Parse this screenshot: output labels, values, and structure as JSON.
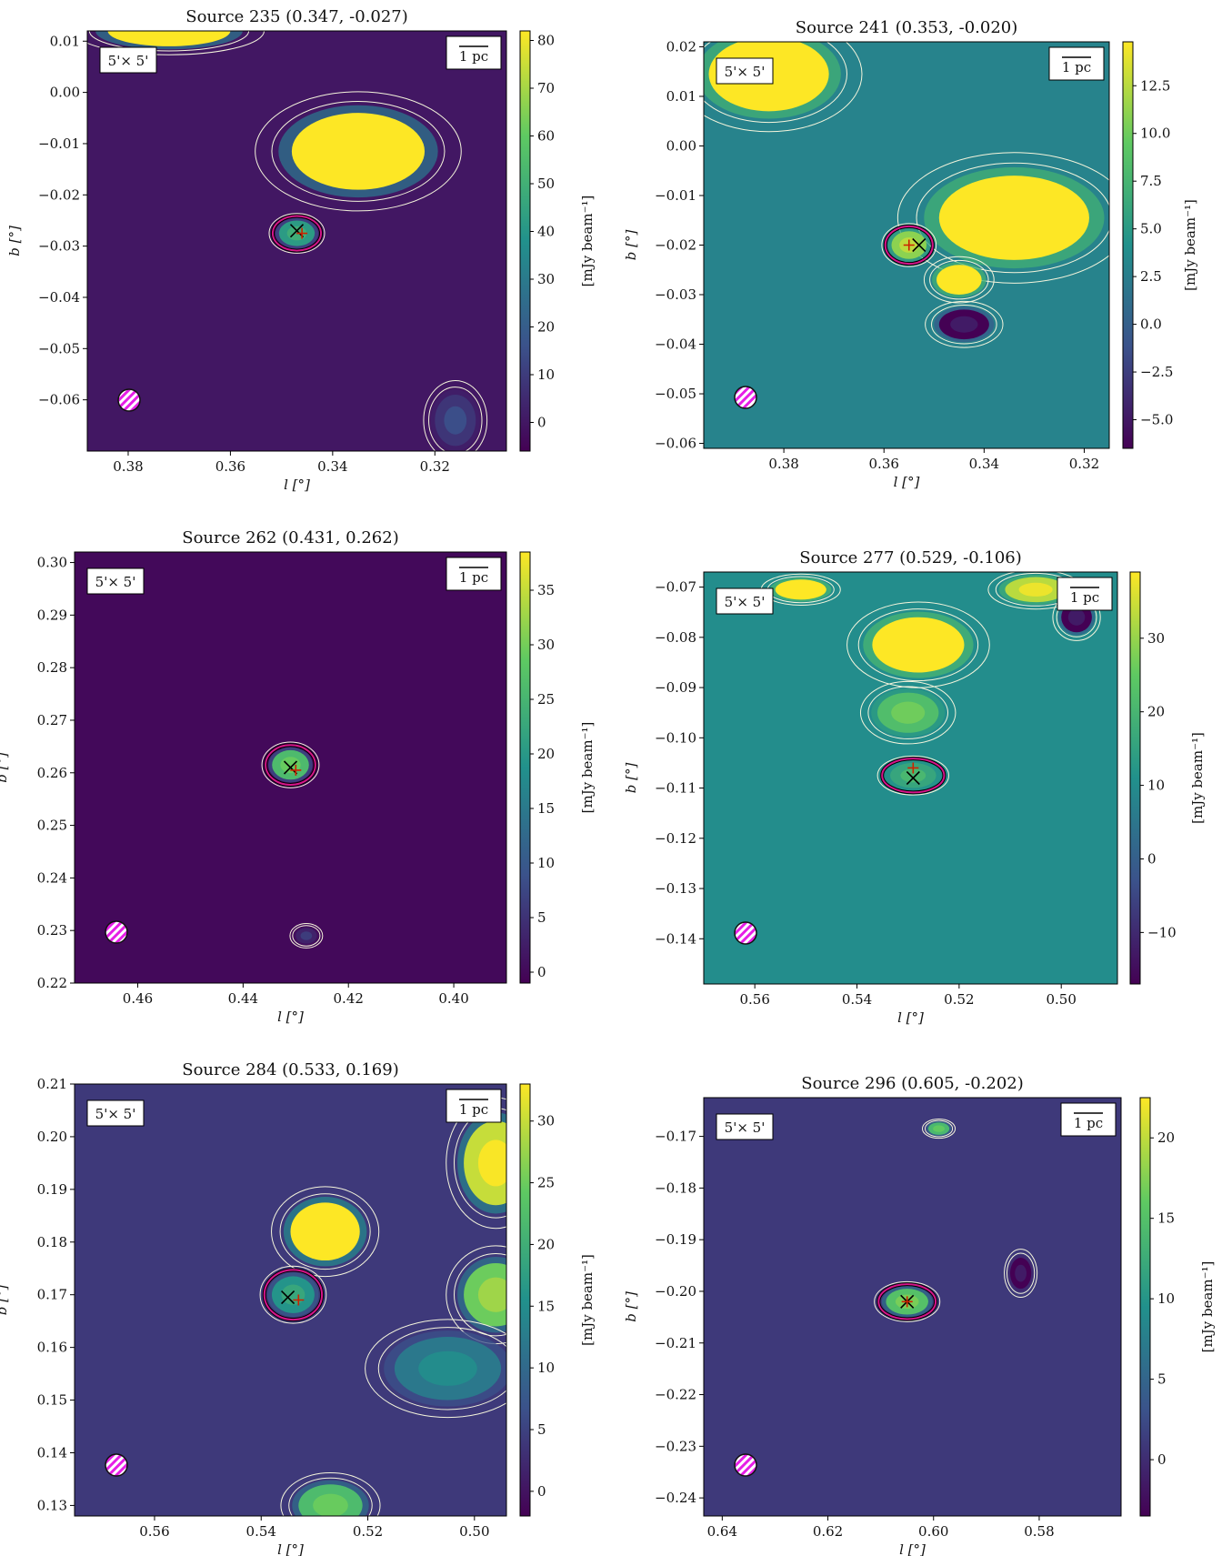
{
  "scale_text": "1 pc",
  "size_text": "5'× 5'",
  "cbar_label": "[mJy beam⁻¹]",
  "xlabel_var": "l",
  "ylabel_var": "b",
  "unit_deg": "[°]",
  "colors": {
    "colormap": [
      "#440154",
      "#3b528b",
      "#21918c",
      "#5ec962",
      "#fde725"
    ],
    "contour": "#f5f5dc",
    "source_contour": "#d4148a",
    "beam": "#e61ee6",
    "marker_x": "#000000",
    "marker_plus": "#cc2200"
  },
  "chart_data": [
    {
      "type": "heatmap",
      "title": "Source 235 (0.347, -0.027)",
      "xlim": [
        0.388,
        0.306
      ],
      "ylim": [
        -0.07,
        0.012
      ],
      "xticks": [
        "0.38",
        "0.36",
        "0.34",
        "0.32"
      ],
      "xtick_vals": [
        0.38,
        0.36,
        0.34,
        0.32
      ],
      "yticks": [
        "0.01",
        "0.00",
        "−0.01",
        "−0.02",
        "−0.03",
        "−0.04",
        "−0.05",
        "−0.06"
      ],
      "ytick_vals": [
        0.01,
        0.0,
        -0.01,
        -0.02,
        -0.03,
        -0.04,
        -0.05,
        -0.06
      ],
      "cbar_range": [
        -6,
        82
      ],
      "cbar_ticks": [
        "80",
        "70",
        "60",
        "50",
        "40",
        "30",
        "20",
        "10",
        "0"
      ],
      "cbar_tick_vals": [
        80,
        70,
        60,
        50,
        40,
        30,
        20,
        10,
        0
      ],
      "source": [
        0.347,
        -0.027
      ],
      "peak": [
        0.346,
        -0.0275
      ],
      "background": 0,
      "blobs": [
        {
          "l": 0.335,
          "b": -0.0115,
          "rl": 0.013,
          "rb": 0.0075,
          "v": 82,
          "sat": true
        },
        {
          "l": 0.347,
          "b": -0.0275,
          "rl": 0.0035,
          "rb": 0.0025,
          "v": 42,
          "sat": false
        },
        {
          "l": 0.372,
          "b": 0.012,
          "rl": 0.012,
          "rb": 0.003,
          "v": 82,
          "sat": true
        },
        {
          "l": 0.316,
          "b": -0.064,
          "rl": 0.004,
          "rb": 0.005,
          "v": 8,
          "sat": false
        }
      ]
    },
    {
      "type": "heatmap",
      "title": "Source 241 (0.353, -0.020)",
      "xlim": [
        0.396,
        0.315
      ],
      "ylim": [
        -0.061,
        0.021
      ],
      "xticks": [
        "0.38",
        "0.36",
        "0.34",
        "0.32"
      ],
      "xtick_vals": [
        0.38,
        0.36,
        0.34,
        0.32
      ],
      "yticks": [
        "0.02",
        "0.01",
        "0.00",
        "−0.01",
        "−0.02",
        "−0.03",
        "−0.04",
        "−0.05",
        "−0.06"
      ],
      "ytick_vals": [
        0.02,
        0.01,
        0.0,
        -0.01,
        -0.02,
        -0.03,
        -0.04,
        -0.05,
        -0.06
      ],
      "cbar_range": [
        -6.5,
        14.8
      ],
      "cbar_ticks": [
        "12.5",
        "10.0",
        "7.5",
        "5.0",
        "2.5",
        "0.0",
        "−2.5",
        "−5.0"
      ],
      "cbar_tick_vals": [
        12.5,
        10.0,
        7.5,
        5.0,
        2.5,
        0.0,
        -2.5,
        -5.0
      ],
      "source": [
        0.353,
        -0.02
      ],
      "peak": [
        0.355,
        -0.02
      ],
      "background": 3,
      "blobs": [
        {
          "l": 0.334,
          "b": -0.0145,
          "rl": 0.015,
          "rb": 0.0085,
          "v": 14.8,
          "sat": true
        },
        {
          "l": 0.383,
          "b": 0.0145,
          "rl": 0.012,
          "rb": 0.0075,
          "v": 14.8,
          "sat": true
        },
        {
          "l": 0.355,
          "b": -0.02,
          "rl": 0.0035,
          "rb": 0.0028,
          "v": 11,
          "sat": false
        },
        {
          "l": 0.345,
          "b": -0.027,
          "rl": 0.0045,
          "rb": 0.003,
          "v": 14.8,
          "sat": true
        },
        {
          "l": 0.344,
          "b": -0.036,
          "rl": 0.005,
          "rb": 0.003,
          "v": -6.5,
          "sat": false
        }
      ]
    },
    {
      "type": "heatmap",
      "title": "Source 262 (0.431, 0.262)",
      "xlim": [
        0.472,
        0.39
      ],
      "ylim": [
        0.22,
        0.302
      ],
      "xticks": [
        "0.46",
        "0.44",
        "0.42",
        "0.40"
      ],
      "xtick_vals": [
        0.46,
        0.44,
        0.42,
        0.4
      ],
      "yticks": [
        "0.30",
        "0.29",
        "0.28",
        "0.27",
        "0.26",
        "0.25",
        "0.24",
        "0.23",
        "0.22"
      ],
      "ytick_vals": [
        0.3,
        0.29,
        0.28,
        0.27,
        0.26,
        0.25,
        0.24,
        0.23,
        0.22
      ],
      "cbar_range": [
        -1,
        38.5
      ],
      "cbar_ticks": [
        "35",
        "30",
        "25",
        "20",
        "15",
        "10",
        "5",
        "0"
      ],
      "cbar_tick_vals": [
        35,
        30,
        25,
        20,
        15,
        10,
        5,
        0
      ],
      "source": [
        0.431,
        0.261
      ],
      "peak": [
        0.43,
        0.2605
      ],
      "background": 0,
      "blobs": [
        {
          "l": 0.431,
          "b": 0.2615,
          "rl": 0.0035,
          "rb": 0.0028,
          "v": 26,
          "sat": false
        },
        {
          "l": 0.428,
          "b": 0.229,
          "rl": 0.002,
          "rb": 0.0015,
          "v": 3,
          "sat": false
        }
      ]
    },
    {
      "type": "heatmap",
      "title": "Source 277 (0.529, -0.106)",
      "xlim": [
        0.57,
        0.489
      ],
      "ylim": [
        -0.149,
        -0.067
      ],
      "xticks": [
        "0.56",
        "0.54",
        "0.52",
        "0.50"
      ],
      "xtick_vals": [
        0.56,
        0.54,
        0.52,
        0.5
      ],
      "yticks": [
        "−0.07",
        "−0.08",
        "−0.09",
        "−0.10",
        "−0.11",
        "−0.12",
        "−0.13",
        "−0.14"
      ],
      "ytick_vals": [
        -0.07,
        -0.08,
        -0.09,
        -0.1,
        -0.11,
        -0.12,
        -0.13,
        -0.14
      ],
      "cbar_range": [
        -17,
        39
      ],
      "cbar_ticks": [
        "30",
        "20",
        "10",
        "0",
        "−10"
      ],
      "cbar_tick_vals": [
        30,
        20,
        10,
        0,
        -10
      ],
      "source": [
        0.529,
        -0.108
      ],
      "peak": [
        0.529,
        -0.106
      ],
      "background": 10,
      "blobs": [
        {
          "l": 0.528,
          "b": -0.0815,
          "rl": 0.009,
          "rb": 0.0055,
          "v": 39,
          "sat": true
        },
        {
          "l": 0.529,
          "b": -0.1075,
          "rl": 0.0045,
          "rb": 0.0025,
          "v": 16,
          "sat": false
        },
        {
          "l": 0.551,
          "b": -0.0705,
          "rl": 0.005,
          "rb": 0.002,
          "v": 39,
          "sat": true
        },
        {
          "l": 0.505,
          "b": -0.0705,
          "rl": 0.006,
          "rb": 0.0025,
          "v": 33,
          "sat": false
        },
        {
          "l": 0.53,
          "b": -0.095,
          "rl": 0.006,
          "rb": 0.004,
          "v": 22,
          "sat": false
        },
        {
          "l": 0.497,
          "b": -0.076,
          "rl": 0.003,
          "rb": 0.003,
          "v": -17,
          "sat": false
        }
      ]
    },
    {
      "type": "heatmap",
      "title": "Source 284 (0.533, 0.169)",
      "xlim": [
        0.575,
        0.494
      ],
      "ylim": [
        0.128,
        0.21
      ],
      "xticks": [
        "0.56",
        "0.54",
        "0.52",
        "0.50"
      ],
      "xtick_vals": [
        0.56,
        0.54,
        0.52,
        0.5
      ],
      "yticks": [
        "0.21",
        "0.20",
        "0.19",
        "0.18",
        "0.17",
        "0.16",
        "0.15",
        "0.14",
        "0.13"
      ],
      "ytick_vals": [
        0.21,
        0.2,
        0.19,
        0.18,
        0.17,
        0.16,
        0.15,
        0.14,
        0.13
      ],
      "cbar_range": [
        -2,
        33
      ],
      "cbar_ticks": [
        "30",
        "25",
        "20",
        "15",
        "10",
        "5",
        "0"
      ],
      "cbar_tick_vals": [
        30,
        25,
        20,
        15,
        10,
        5,
        0
      ],
      "source": [
        0.535,
        0.1695
      ],
      "peak": [
        0.533,
        0.169
      ],
      "background": 4,
      "blobs": [
        {
          "l": 0.528,
          "b": 0.182,
          "rl": 0.0065,
          "rb": 0.0055,
          "v": 33,
          "sat": true
        },
        {
          "l": 0.534,
          "b": 0.17,
          "rl": 0.004,
          "rb": 0.0035,
          "v": 16,
          "sat": false
        },
        {
          "l": 0.496,
          "b": 0.195,
          "rl": 0.006,
          "rb": 0.008,
          "v": 30,
          "sat": false
        },
        {
          "l": 0.496,
          "b": 0.17,
          "rl": 0.006,
          "rb": 0.006,
          "v": 25,
          "sat": false
        },
        {
          "l": 0.505,
          "b": 0.156,
          "rl": 0.01,
          "rb": 0.006,
          "v": 12,
          "sat": false
        },
        {
          "l": 0.527,
          "b": 0.13,
          "rl": 0.006,
          "rb": 0.004,
          "v": 22,
          "sat": false
        }
      ]
    },
    {
      "type": "heatmap",
      "title": "Source 296 (0.605, -0.202)",
      "xlim": [
        0.6435,
        0.5645
      ],
      "ylim": [
        -0.2435,
        -0.1625
      ],
      "xticks": [
        "0.64",
        "0.62",
        "0.60",
        "0.58"
      ],
      "xtick_vals": [
        0.64,
        0.62,
        0.6,
        0.58
      ],
      "yticks": [
        "−0.17",
        "−0.18",
        "−0.19",
        "−0.20",
        "−0.21",
        "−0.22",
        "−0.23",
        "−0.24"
      ],
      "ytick_vals": [
        -0.17,
        -0.18,
        -0.19,
        -0.2,
        -0.21,
        -0.22,
        -0.23,
        -0.24
      ],
      "cbar_range": [
        -3.5,
        22.5
      ],
      "cbar_ticks": [
        "20",
        "15",
        "10",
        "5",
        "0"
      ],
      "cbar_tick_vals": [
        20,
        15,
        10,
        5,
        0
      ],
      "source": [
        0.605,
        -0.202
      ],
      "peak": [
        0.605,
        -0.202
      ],
      "background": 1,
      "blobs": [
        {
          "l": 0.605,
          "b": -0.202,
          "rl": 0.004,
          "rb": 0.0025,
          "v": 15,
          "sat": false
        },
        {
          "l": 0.5835,
          "b": -0.1965,
          "rl": 0.002,
          "rb": 0.003,
          "v": -3.5,
          "sat": false
        },
        {
          "l": 0.599,
          "b": -0.1685,
          "rl": 0.002,
          "rb": 0.0012,
          "v": 14,
          "sat": false
        }
      ]
    }
  ]
}
